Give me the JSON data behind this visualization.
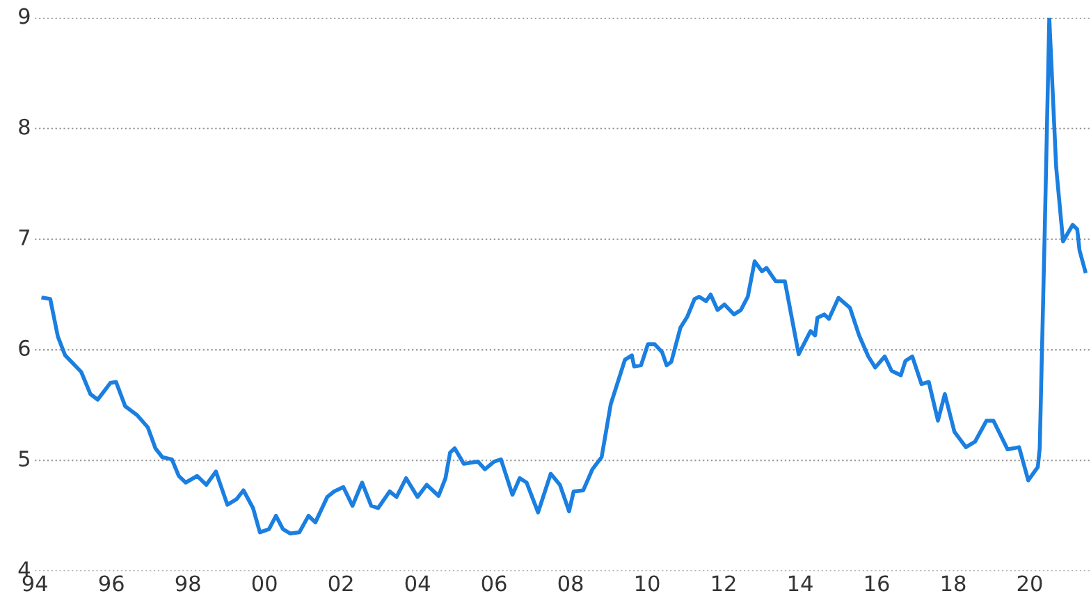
{
  "chart_data": {
    "type": "line",
    "xlim": [
      1994,
      2021.6
    ],
    "ylim": [
      4,
      9
    ],
    "xticks": [
      {
        "value": 1994,
        "label": "94"
      },
      {
        "value": 1996,
        "label": "96"
      },
      {
        "value": 1998,
        "label": "98"
      },
      {
        "value": 2000,
        "label": "00"
      },
      {
        "value": 2002,
        "label": "02"
      },
      {
        "value": 2004,
        "label": "04"
      },
      {
        "value": 2006,
        "label": "06"
      },
      {
        "value": 2008,
        "label": "08"
      },
      {
        "value": 2010,
        "label": "10"
      },
      {
        "value": 2012,
        "label": "12"
      },
      {
        "value": 2014,
        "label": "14"
      },
      {
        "value": 2016,
        "label": "16"
      },
      {
        "value": 2018,
        "label": "18"
      },
      {
        "value": 2020,
        "label": "20"
      }
    ],
    "yticks": [
      4,
      5,
      6,
      7,
      8,
      9
    ],
    "grid": "y",
    "legend": false,
    "marker": "none",
    "line_style": "solid",
    "x": [
      1994.22,
      1994.4,
      1994.6,
      1994.79,
      1995.21,
      1995.45,
      1995.64,
      1995.97,
      1996.12,
      1996.36,
      1996.67,
      1996.95,
      1997.15,
      1997.33,
      1997.58,
      1997.76,
      1997.94,
      1998.24,
      1998.48,
      1998.73,
      1999.03,
      1999.27,
      1999.45,
      1999.7,
      1999.88,
      2000.12,
      2000.3,
      2000.48,
      2000.67,
      2000.91,
      2001.15,
      2001.33,
      2001.64,
      2001.82,
      2002.06,
      2002.3,
      2002.55,
      2002.79,
      2002.97,
      2003.27,
      2003.45,
      2003.7,
      2004.0,
      2004.24,
      2004.55,
      2004.73,
      2004.85,
      2004.97,
      2005.21,
      2005.58,
      2005.76,
      2006.0,
      2006.18,
      2006.48,
      2006.67,
      2006.85,
      2007.15,
      2007.48,
      2007.72,
      2007.96,
      2008.08,
      2008.33,
      2008.57,
      2008.81,
      2009.05,
      2009.42,
      2009.6,
      2009.66,
      2009.84,
      2010.02,
      2010.2,
      2010.39,
      2010.51,
      2010.63,
      2010.87,
      2011.05,
      2011.24,
      2011.36,
      2011.54,
      2011.66,
      2011.84,
      2012.02,
      2012.27,
      2012.45,
      2012.63,
      2012.81,
      2013.0,
      2013.12,
      2013.36,
      2013.6,
      2013.96,
      2014.27,
      2014.39,
      2014.45,
      2014.63,
      2014.75,
      2015.0,
      2015.3,
      2015.54,
      2015.78,
      2015.96,
      2016.21,
      2016.39,
      2016.63,
      2016.75,
      2016.93,
      2017.17,
      2017.36,
      2017.6,
      2017.78,
      2018.03,
      2018.33,
      2018.57,
      2018.87,
      2019.05,
      2019.42,
      2019.72,
      2019.96,
      2020.21,
      2020.26,
      2020.39,
      2020.51,
      2020.69,
      2020.87,
      2021.12,
      2021.24,
      2021.3,
      2021.45
    ],
    "series": [
      {
        "color": "#1a7fe0",
        "values": [
          6.47,
          6.46,
          6.12,
          5.95,
          5.8,
          5.6,
          5.55,
          5.7,
          5.71,
          5.49,
          5.41,
          5.3,
          5.11,
          5.03,
          5.01,
          4.86,
          4.8,
          4.86,
          4.78,
          4.9,
          4.6,
          4.65,
          4.73,
          4.57,
          4.35,
          4.38,
          4.5,
          4.38,
          4.34,
          4.35,
          4.5,
          4.44,
          4.67,
          4.72,
          4.76,
          4.59,
          4.8,
          4.59,
          4.57,
          4.72,
          4.67,
          4.84,
          4.67,
          4.78,
          4.68,
          4.84,
          5.07,
          5.11,
          4.97,
          4.99,
          4.92,
          4.99,
          5.01,
          4.69,
          4.84,
          4.8,
          4.53,
          4.88,
          4.78,
          4.54,
          4.72,
          4.73,
          4.92,
          5.03,
          5.51,
          5.91,
          5.95,
          5.85,
          5.86,
          6.05,
          6.05,
          5.98,
          5.86,
          5.89,
          6.2,
          6.3,
          6.46,
          6.48,
          6.44,
          6.5,
          6.36,
          6.41,
          6.32,
          6.36,
          6.48,
          6.8,
          6.71,
          6.74,
          6.62,
          6.62,
          5.96,
          6.17,
          6.13,
          6.29,
          6.32,
          6.28,
          6.47,
          6.38,
          6.13,
          5.94,
          5.84,
          5.94,
          5.81,
          5.77,
          5.9,
          5.94,
          5.69,
          5.71,
          5.36,
          5.6,
          5.26,
          5.12,
          5.17,
          5.36,
          5.36,
          5.1,
          5.12,
          4.82,
          4.94,
          5.11,
          7.06,
          9.0,
          7.65,
          6.98,
          7.13,
          7.09,
          6.9,
          6.71
        ]
      }
    ]
  }
}
